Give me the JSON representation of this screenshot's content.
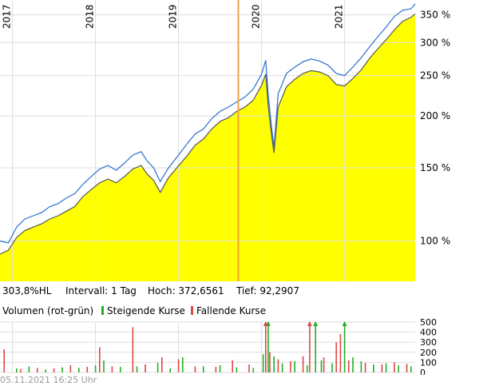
{
  "chart_data": [
    {
      "type": "area",
      "scale": "log",
      "x_tick_labels": [
        "2017",
        "2018",
        "2019",
        "2020",
        "2021"
      ],
      "x_ticks": [
        2017.0,
        2018.0,
        2019.0,
        2020.0,
        2021.0
      ],
      "y_tick_labels": [
        "100 %",
        "150 %",
        "200 %",
        "250 %",
        "300 %",
        "350 %"
      ],
      "y_ticks": [
        100,
        150,
        200,
        250,
        300,
        350
      ],
      "xlim": [
        2016.85,
        2021.85
      ],
      "ylim": [
        80,
        380
      ],
      "marker_line": {
        "x": 2019.72,
        "color": "#f2a33a"
      },
      "series": [
        {
          "color_fill": "#ffff00",
          "color_line": "#555555",
          "x": [
            2016.85,
            2016.95,
            2017.05,
            2017.15,
            2017.25,
            2017.35,
            2017.45,
            2017.55,
            2017.65,
            2017.75,
            2017.85,
            2017.95,
            2018.05,
            2018.15,
            2018.25,
            2018.35,
            2018.45,
            2018.55,
            2018.62,
            2018.7,
            2018.78,
            2018.88,
            2018.98,
            2019.1,
            2019.2,
            2019.3,
            2019.4,
            2019.5,
            2019.6,
            2019.7,
            2019.8,
            2019.9,
            2020.0,
            2020.05,
            2020.08,
            2020.12,
            2020.15,
            2020.2,
            2020.3,
            2020.4,
            2020.5,
            2020.6,
            2020.7,
            2020.8,
            2020.9,
            2021.0,
            2021.1,
            2021.2,
            2021.3,
            2021.4,
            2021.5,
            2021.6,
            2021.7,
            2021.8,
            2021.85
          ],
          "y": [
            93,
            95,
            102,
            106,
            108,
            110,
            113,
            115,
            118,
            121,
            128,
            133,
            138,
            141,
            138,
            143,
            149,
            152,
            145,
            140,
            131,
            142,
            150,
            160,
            170,
            176,
            186,
            194,
            198,
            205,
            210,
            218,
            237,
            252,
            212,
            180,
            163,
            210,
            235,
            245,
            253,
            257,
            255,
            250,
            238,
            236,
            246,
            258,
            275,
            290,
            305,
            322,
            338,
            345,
            352
          ]
        },
        {
          "color_line": "#2a6fd1",
          "x": [
            2016.85,
            2016.95,
            2017.05,
            2017.15,
            2017.25,
            2017.35,
            2017.45,
            2017.55,
            2017.65,
            2017.75,
            2017.85,
            2017.95,
            2018.05,
            2018.15,
            2018.25,
            2018.35,
            2018.45,
            2018.55,
            2018.62,
            2018.7,
            2018.78,
            2018.88,
            2018.98,
            2019.1,
            2019.2,
            2019.3,
            2019.4,
            2019.5,
            2019.6,
            2019.7,
            2019.8,
            2019.9,
            2020.0,
            2020.05,
            2020.08,
            2020.12,
            2020.15,
            2020.2,
            2020.3,
            2020.4,
            2020.5,
            2020.6,
            2020.7,
            2020.8,
            2020.9,
            2021.0,
            2021.1,
            2021.2,
            2021.3,
            2021.4,
            2021.5,
            2021.6,
            2021.7,
            2021.8,
            2021.85
          ],
          "y": [
            100,
            99,
            108,
            113,
            115,
            117,
            121,
            123,
            127,
            130,
            137,
            143,
            149,
            152,
            148,
            154,
            161,
            164,
            156,
            150,
            139,
            150,
            159,
            171,
            181,
            186,
            197,
            205,
            210,
            216,
            222,
            232,
            252,
            272,
            225,
            188,
            168,
            226,
            253,
            262,
            270,
            274,
            271,
            265,
            253,
            250,
            262,
            276,
            293,
            310,
            327,
            347,
            359,
            362,
            372
          ]
        }
      ]
    },
    {
      "type": "bar",
      "title": "Volumen (rot-grün)",
      "legend": [
        {
          "label": "Steigende Kurse",
          "color": "#22b022"
        },
        {
          "label": "Fallende Kurse",
          "color": "#e04848"
        }
      ],
      "y_tick_labels": [
        "500",
        "400",
        "300",
        "200",
        "100",
        "0"
      ],
      "y_ticks": [
        500,
        400,
        300,
        200,
        100,
        0
      ],
      "ylim": [
        0,
        500
      ],
      "xlim": [
        2016.85,
        2021.85
      ],
      "series": [
        {
          "name": "Steigende Kurse",
          "color": "#22b022",
          "x": [
            2017.05,
            2017.2,
            2017.4,
            2017.6,
            2017.8,
            2018.0,
            2018.1,
            2018.3,
            2018.5,
            2018.75,
            2018.9,
            2019.05,
            2019.3,
            2019.5,
            2019.7,
            2019.9,
            2020.02,
            2020.08,
            2020.15,
            2020.25,
            2020.4,
            2020.55,
            2020.65,
            2020.72,
            2020.85,
            2021.0,
            2021.1,
            2021.2,
            2021.35,
            2021.5,
            2021.65,
            2021.8
          ],
          "y": [
            40,
            60,
            30,
            50,
            45,
            70,
            120,
            55,
            60,
            95,
            40,
            150,
            60,
            70,
            50,
            45,
            180,
            520,
            160,
            90,
            110,
            70,
            520,
            120,
            90,
            520,
            150,
            110,
            80,
            90,
            70,
            60
          ]
        },
        {
          "name": "Fallende Kurse",
          "color": "#e04848",
          "x": [
            2016.9,
            2017.1,
            2017.3,
            2017.5,
            2017.7,
            2017.9,
            2018.05,
            2018.2,
            2018.45,
            2018.6,
            2018.8,
            2019.0,
            2019.2,
            2019.45,
            2019.65,
            2019.85,
            2020.05,
            2020.1,
            2020.2,
            2020.35,
            2020.5,
            2020.58,
            2020.75,
            2020.9,
            2020.95,
            2021.05,
            2021.25,
            2021.45,
            2021.6,
            2021.75
          ],
          "y": [
            230,
            35,
            45,
            40,
            70,
            55,
            250,
            60,
            450,
            80,
            150,
            130,
            60,
            55,
            120,
            80,
            520,
            200,
            130,
            110,
            160,
            520,
            150,
            300,
            380,
            120,
            95,
            80,
            100,
            85
          ]
        }
      ]
    }
  ],
  "stats": {
    "hl": "303,8%HL",
    "interval": "Intervall: 1 Tag",
    "high": "Hoch: 372,6561",
    "low": "Tief: 92,2907"
  },
  "volume_title": "Volumen (rot-grün)",
  "legend_rising": "Steigende Kurse",
  "legend_falling": "Fallende Kurse",
  "footer": "05.11.2021 16:25 Uhr"
}
